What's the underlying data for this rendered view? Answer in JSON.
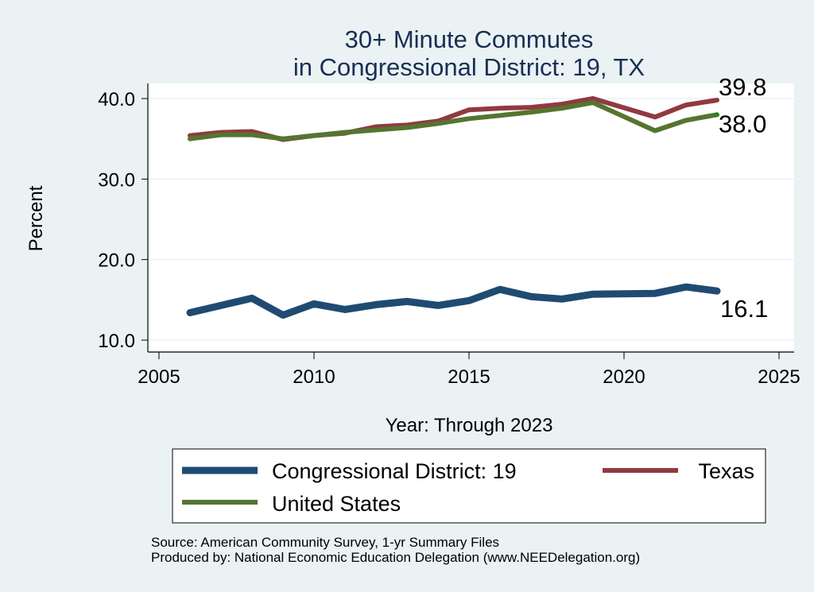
{
  "chart_data": {
    "type": "line",
    "title": [
      "30+ Minute Commutes",
      "in Congressional District:  19, TX"
    ],
    "xlabel": "Year: Through 2023",
    "ylabel": "Percent",
    "xlim": [
      2005,
      2025
    ],
    "ylim": [
      10,
      40
    ],
    "xticks": [
      2005,
      2010,
      2015,
      2020,
      2025
    ],
    "xtick_labels": [
      "2005",
      "2010",
      "2015",
      "2020",
      "2025"
    ],
    "yticks": [
      10,
      20,
      30,
      40
    ],
    "ytick_labels": [
      "10.0",
      "20.0",
      "30.0",
      "40.0"
    ],
    "grid": "horizontal",
    "x": [
      2006,
      2007,
      2008,
      2009,
      2010,
      2011,
      2012,
      2013,
      2014,
      2015,
      2016,
      2017,
      2018,
      2019,
      2021,
      2022,
      2023
    ],
    "series": [
      {
        "name": "Congressional District:  19",
        "color": "#1f4b72",
        "values": [
          13.4,
          14.3,
          15.2,
          13.1,
          14.5,
          13.8,
          14.4,
          14.8,
          14.3,
          14.9,
          16.3,
          15.4,
          15.1,
          15.7,
          15.8,
          16.6,
          16.1
        ],
        "end_label": "16.1"
      },
      {
        "name": "Texas",
        "color": "#903a41",
        "values": [
          35.4,
          35.8,
          35.9,
          34.9,
          35.4,
          35.7,
          36.5,
          36.7,
          37.2,
          38.6,
          38.8,
          38.9,
          39.3,
          40.0,
          37.7,
          39.2,
          39.8
        ],
        "end_label": "39.8"
      },
      {
        "name": "United States",
        "color": "#55752f",
        "values": [
          35.0,
          35.5,
          35.5,
          35.0,
          35.4,
          35.8,
          36.1,
          36.4,
          36.9,
          37.5,
          37.9,
          38.3,
          38.8,
          39.5,
          36.0,
          37.3,
          38.0
        ],
        "end_label": "38.0"
      }
    ],
    "legend": {
      "placement": "bottom",
      "entries": [
        "Congressional District:  19",
        "Texas",
        "United States"
      ]
    },
    "notes": [
      "Source: American Community Survey, 1-yr Summary Files",
      "Produced by: National Economic Education Delegation (www.NEEDelegation.org)"
    ]
  }
}
